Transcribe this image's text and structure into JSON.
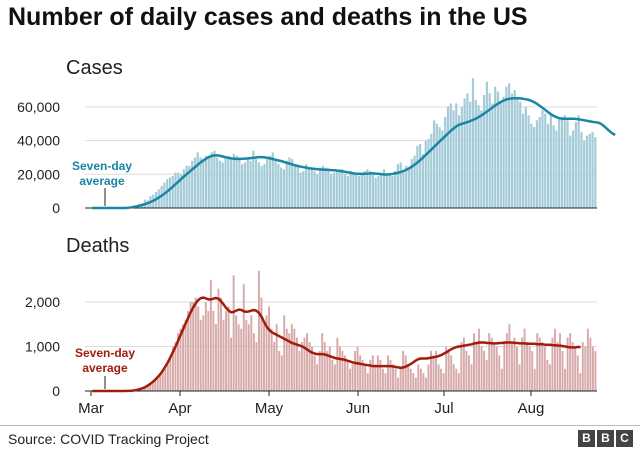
{
  "title": "Number of daily cases and deaths in the US",
  "source": "Source: COVID Tracking Project",
  "logo": [
    "B",
    "B",
    "C"
  ],
  "colors": {
    "cases_bar": "#a3cbd8",
    "cases_line": "#1a86a4",
    "cases_label": "#1a86a4",
    "deaths_bar": "#d7a9a9",
    "deaths_line": "#a11c0c",
    "deaths_label": "#a11c0c",
    "grid": "#dddddd",
    "axis": "#222222",
    "text": "#222222"
  },
  "chart_data": [
    {
      "type": "bar",
      "title": "Cases",
      "x_ticks": [
        "Mar",
        "Apr",
        "May",
        "Jun",
        "Jul",
        "Aug"
      ],
      "y_ticks": [
        "0",
        "20,000",
        "40,000",
        "60,000"
      ],
      "ylim": [
        0,
        70000
      ],
      "grid": true,
      "annotation": "Seven-day average",
      "series": [
        {
          "type": "bar",
          "values": [
            0,
            0,
            0,
            0,
            0,
            0,
            0,
            0,
            0,
            0,
            0,
            0,
            0,
            0,
            0,
            1000,
            1500,
            2500,
            3000,
            5000,
            4500,
            7000,
            8000,
            9500,
            11000,
            13000,
            15000,
            17000,
            18000,
            19000,
            21000,
            21000,
            20000,
            23000,
            25000,
            25000,
            28000,
            30000,
            33000,
            30000,
            29000,
            31000,
            30000,
            33000,
            34000,
            30000,
            28000,
            27000,
            30000,
            31000,
            29000,
            32000,
            31000,
            29000,
            26000,
            27000,
            30000,
            28000,
            34000,
            29000,
            27000,
            25000,
            26000,
            29000,
            31000,
            33000,
            28000,
            26000,
            24000,
            23000,
            28000,
            30000,
            29000,
            25000,
            25000,
            21000,
            22000,
            26000,
            24000,
            23000,
            22000,
            20000,
            24000,
            25000,
            24000,
            23000,
            20000,
            21000,
            22000,
            22000,
            23000,
            20000,
            19000,
            22000,
            21000,
            20000,
            19000,
            21000,
            22000,
            23000,
            22000,
            21000,
            18000,
            19000,
            21000,
            23000,
            20000,
            20000,
            19000,
            22000,
            26000,
            27000,
            21000,
            25000,
            24000,
            29000,
            31000,
            37000,
            38000,
            32000,
            40000,
            41000,
            44000,
            52000,
            50000,
            48000,
            46000,
            54000,
            60000,
            62000,
            58000,
            62000,
            55000,
            60000,
            65000,
            68000,
            63000,
            77000,
            64000,
            61000,
            58000,
            67000,
            75000,
            68000,
            62000,
            72000,
            69000,
            63000,
            66000,
            72000,
            74000,
            68000,
            70000,
            66000,
            63000,
            56000,
            60000,
            55000,
            50000,
            48000,
            52000,
            54000,
            58000,
            56000,
            50000,
            55000,
            49000,
            46000,
            53000,
            54000,
            55000,
            52000,
            43000,
            46000,
            51000,
            55000,
            45000,
            40000,
            43000,
            44000,
            45000,
            42000
          ]
        },
        {
          "type": "line",
          "name": "Seven-day average",
          "values": [
            0,
            0,
            0,
            0,
            0,
            0,
            0,
            0,
            0,
            0,
            0,
            0,
            0,
            200,
            400,
            700,
            1000,
            1400,
            1800,
            2300,
            2900,
            3600,
            4400,
            5300,
            6300,
            7400,
            8600,
            9900,
            11300,
            12800,
            14300,
            15800,
            17300,
            18800,
            20200,
            21600,
            23000,
            24400,
            25800,
            27100,
            28300,
            29400,
            30300,
            30900,
            31200,
            31200,
            30900,
            30500,
            30100,
            29700,
            29400,
            29200,
            29100,
            29100,
            29200,
            29300,
            29400,
            29600,
            29800,
            30000,
            30200,
            30200,
            30000,
            29700,
            29400,
            29000,
            28600,
            28200,
            27800,
            27300,
            26800,
            26300,
            25800,
            25300,
            24900,
            24500,
            24200,
            23900,
            23600,
            23400,
            23200,
            23000,
            22900,
            22800,
            22700,
            22600,
            22500,
            22400,
            22200,
            22000,
            21700,
            21400,
            21100,
            20800,
            20500,
            20300,
            20200,
            20200,
            20300,
            20400,
            20500,
            20500,
            20400,
            20200,
            20000,
            19900,
            19900,
            20000,
            20200,
            20500,
            20900,
            21400,
            22000,
            22700,
            23600,
            24600,
            25800,
            27100,
            28500,
            30000,
            31600,
            33200,
            34800,
            36400,
            38000,
            39600,
            41200,
            42800,
            44400,
            45900,
            47300,
            48500,
            49400,
            50000,
            50500,
            51000,
            51600,
            52300,
            53100,
            54000,
            55000,
            56100,
            57300,
            58500,
            59700,
            60900,
            62000,
            63000,
            63800,
            64400,
            64800,
            65000,
            65100,
            65100,
            65000,
            64800,
            64500,
            64100,
            63500,
            62700,
            61700,
            60500,
            59300,
            58000,
            56800,
            55600,
            54600,
            53800,
            53300,
            53000,
            52900,
            52900,
            52900,
            52900,
            52800,
            52600,
            52300,
            52000,
            51700,
            51400,
            51100,
            50900,
            50600,
            49900,
            48600,
            47100,
            45600,
            44300,
            43300
          ]
        }
      ]
    },
    {
      "type": "bar",
      "title": "Deaths",
      "x_ticks": [
        "Mar",
        "Apr",
        "May",
        "Jun",
        "Jul",
        "Aug"
      ],
      "y_ticks": [
        "0",
        "1,000",
        "2,000"
      ],
      "ylim": [
        0,
        2900
      ],
      "grid": true,
      "annotation": "Seven-day average",
      "series": [
        {
          "type": "bar",
          "values": [
            0,
            0,
            0,
            0,
            0,
            0,
            0,
            0,
            0,
            0,
            0,
            0,
            0,
            0,
            0,
            0,
            5,
            10,
            20,
            30,
            50,
            80,
            100,
            150,
            200,
            250,
            300,
            380,
            450,
            500,
            600,
            800,
            1000,
            1100,
            1300,
            1400,
            1500,
            1600,
            1800,
            2000,
            2000,
            2100,
            1900,
            1600,
            1700,
            2000,
            1800,
            2500,
            1800,
            1500,
            2300,
            2100,
            1600,
            1800,
            1900,
            1200,
            2600,
            1700,
            1500,
            1400,
            2400,
            1600,
            1500,
            1700,
            1300,
            1100,
            2700,
            2100,
            1500,
            1700,
            1900,
            1400,
            1100,
            1500,
            900,
            800,
            1700,
            1400,
            1300,
            1500,
            1400,
            1200,
            900,
            1100,
            1200,
            1300,
            1100,
            1000,
            800,
            600,
            900,
            1300,
            1100,
            900,
            1000,
            700,
            600,
            1200,
            1000,
            900,
            800,
            700,
            500,
            600,
            900,
            1000,
            800,
            700,
            600,
            400,
            700,
            800,
            600,
            800,
            700,
            500,
            400,
            800,
            700,
            600,
            500,
            300,
            500,
            900,
            800,
            600,
            500,
            400,
            300,
            600,
            500,
            400,
            300,
            600,
            900,
            800,
            900,
            600,
            500,
            400,
            1000,
            900,
            800,
            600,
            500,
            400,
            1100,
            1200,
            900,
            800,
            600,
            1300,
            1100,
            1400,
            1000,
            900,
            700,
            1300,
            1200,
            1100,
            1000,
            800,
            500,
            1100,
            1300,
            1500,
            1100,
            1200,
            1000,
            600,
            1200,
            1400,
            1100,
            1000,
            900,
            500,
            1300,
            1200,
            1100,
            1000,
            700,
            600,
            1200,
            1400,
            1100,
            1300,
            900,
            500,
            1200,
            1300,
            1100,
            1000,
            800,
            400,
            1100,
            1000,
            1400,
            1200,
            1000,
            900
          ]
        },
        {
          "type": "line",
          "name": "Seven-day average",
          "values": [
            0,
            0,
            0,
            0,
            0,
            0,
            0,
            0,
            0,
            0,
            0,
            0,
            0,
            0,
            2,
            5,
            10,
            18,
            30,
            45,
            65,
            90,
            125,
            165,
            210,
            260,
            320,
            390,
            470,
            560,
            660,
            770,
            890,
            1010,
            1140,
            1270,
            1400,
            1530,
            1660,
            1780,
            1890,
            1980,
            2050,
            2090,
            2100,
            2080,
            2060,
            2060,
            2080,
            2090,
            2070,
            2010,
            1940,
            1860,
            1800,
            1770,
            1780,
            1810,
            1830,
            1820,
            1790,
            1780,
            1790,
            1810,
            1820,
            1800,
            1750,
            1660,
            1540,
            1440,
            1370,
            1320,
            1290,
            1260,
            1230,
            1200,
            1170,
            1140,
            1110,
            1080,
            1060,
            1040,
            1020,
            1000,
            970,
            930,
            890,
            860,
            840,
            830,
            830,
            830,
            820,
            800,
            780,
            760,
            740,
            730,
            720,
            710,
            700,
            680,
            660,
            640,
            630,
            620,
            610,
            600,
            590,
            580,
            570,
            560,
            560,
            560,
            560,
            560,
            560,
            560,
            560,
            550,
            540,
            530,
            520,
            530,
            550,
            580,
            610,
            650,
            690,
            720,
            730,
            730,
            730,
            740,
            750,
            760,
            770,
            790,
            810,
            840,
            870,
            910,
            940,
            970,
            990,
            1000,
            1010,
            1020,
            1030,
            1040,
            1050,
            1070,
            1080,
            1090,
            1090,
            1090,
            1080,
            1080,
            1070,
            1070,
            1070,
            1080,
            1080,
            1090,
            1090,
            1090,
            1090,
            1080,
            1080,
            1070,
            1070,
            1070,
            1060,
            1060,
            1060,
            1060,
            1050,
            1050,
            1050,
            1040,
            1040,
            1040,
            1030,
            1030,
            1020,
            1020,
            1010,
            1000,
            990,
            980,
            980,
            980,
            990,
            990
          ]
        }
      ]
    }
  ]
}
